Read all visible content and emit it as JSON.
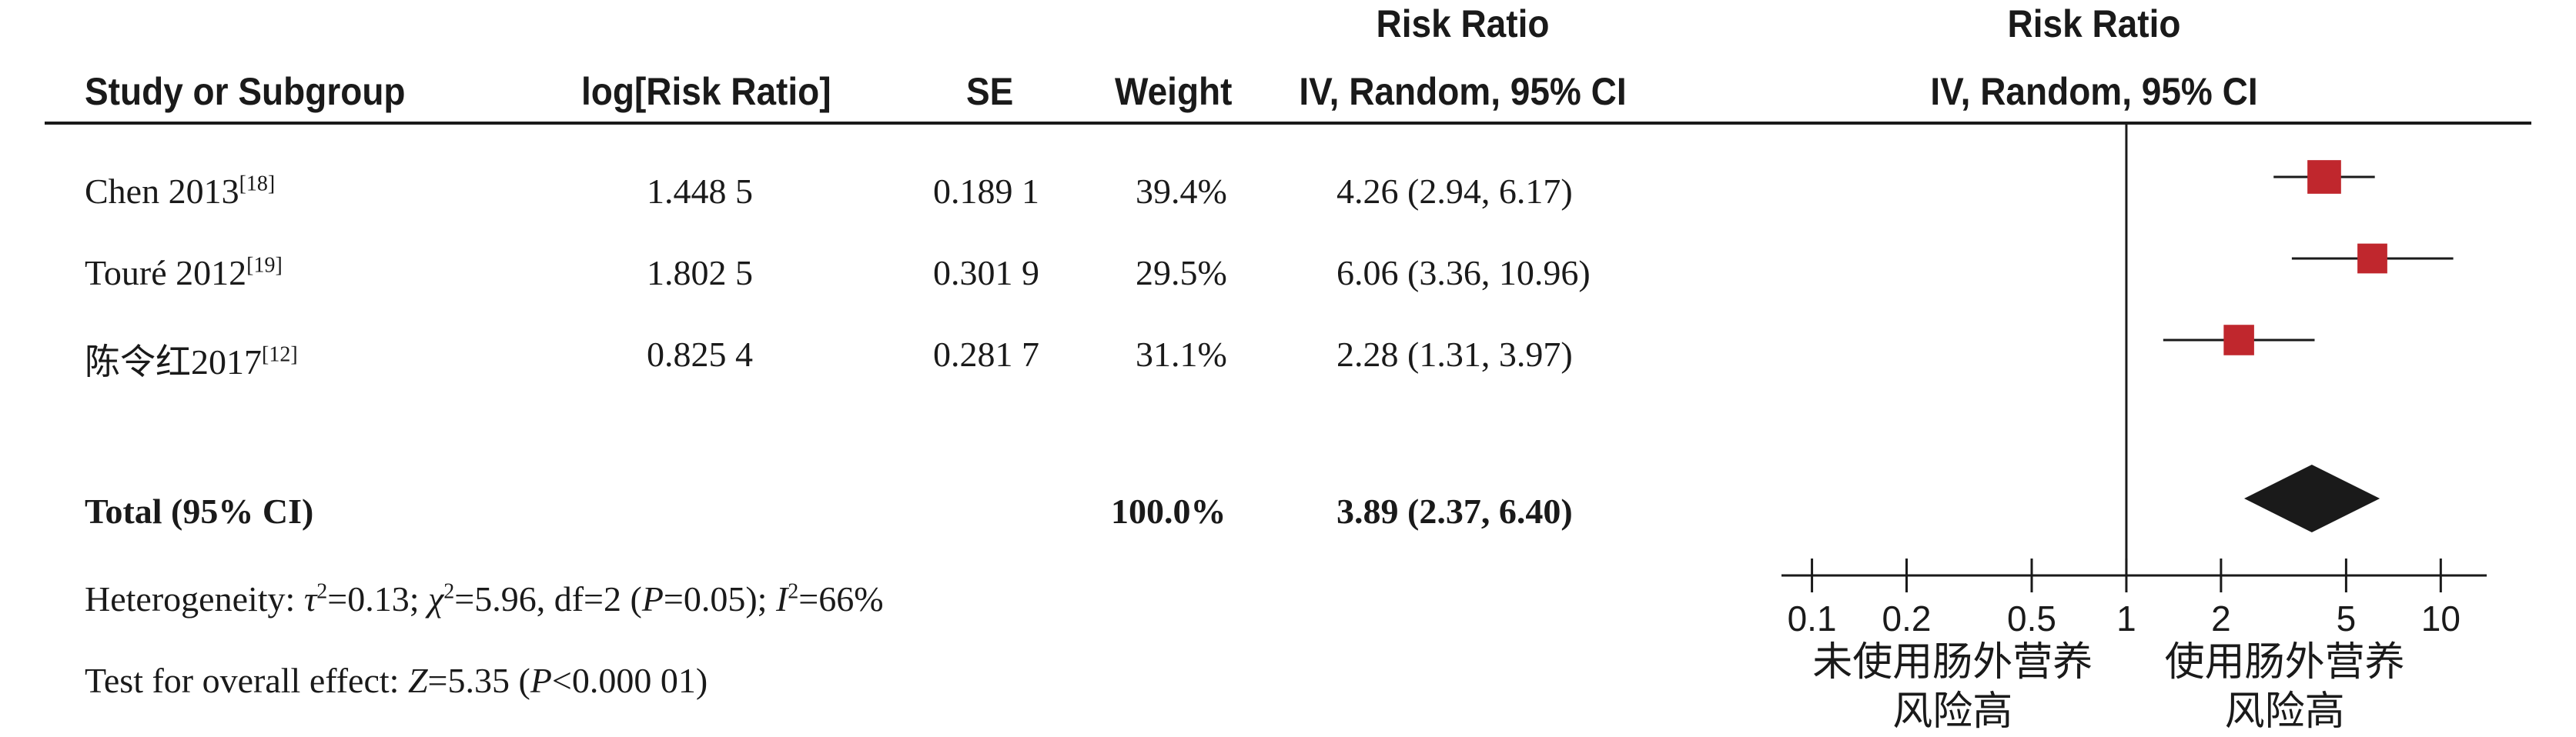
{
  "header": {
    "col_study": "Study or Subgroup",
    "col_logrr": "log[Risk Ratio]",
    "col_se": "SE",
    "col_weight": "Weight",
    "col_rr_title": "Risk Ratio",
    "col_rr_method": "IV, Random, 95% CI",
    "plot_title": "Risk Ratio",
    "plot_method": "IV, Random, 95% CI"
  },
  "studies": [
    {
      "name": "Chen 2013",
      "ref": "[18]",
      "logrr": "1.448 5",
      "se": "0.189 1",
      "weight": "39.4%",
      "ci_text": "4.26 (2.94, 6.17)"
    },
    {
      "name": "Touré 2012",
      "ref": "[19]",
      "logrr": "1.802 5",
      "se": "0.301 9",
      "weight": "29.5%",
      "ci_text": "6.06 (3.36, 10.96)"
    },
    {
      "name": "陈令红2017",
      "ref": "[12]",
      "logrr": "0.825 4",
      "se": "0.281 7",
      "weight": "31.1%",
      "ci_text": "2.28 (1.31, 3.97)"
    }
  ],
  "total": {
    "label": "Total (95% CI)",
    "weight": "100.0%",
    "ci_text": "3.89 (2.37, 6.40)"
  },
  "heterogeneity": {
    "prefix": "Heterogeneity: ",
    "tau_sym": "τ",
    "tau_val": "=0.13; ",
    "chi_sym": "χ",
    "chi_val": "=5.96, df=2 (",
    "p_sym": "P",
    "p_val": "=0.05); ",
    "i_sym": "I",
    "i_val": "=66%",
    "sup": "2"
  },
  "overall": {
    "prefix": "Test for overall effect: ",
    "z_sym": "Z",
    "z_val": "=5.35 (",
    "p_sym": "P",
    "p_val": "<0.000 01)"
  },
  "chart_data": {
    "type": "forest",
    "title": "Risk Ratio",
    "subtitle": "IV, Random, 95% CI",
    "x_scale": "log",
    "xlim": [
      0.08,
      14
    ],
    "ticks": [
      0.1,
      0.2,
      0.5,
      1,
      2,
      5,
      10
    ],
    "tick_labels": [
      "0.1",
      "0.2",
      "0.5",
      "1",
      "2",
      "5",
      "10"
    ],
    "null_line": 1,
    "favours_left": [
      "未使用肠外营养",
      "风险高"
    ],
    "favours_right": [
      "使用肠外营养",
      "风险高"
    ],
    "studies": [
      {
        "estimate": 4.26,
        "lower": 2.94,
        "upper": 6.17,
        "weight": 39.4
      },
      {
        "estimate": 6.06,
        "lower": 3.36,
        "upper": 10.96,
        "weight": 29.5
      },
      {
        "estimate": 2.28,
        "lower": 1.31,
        "upper": 3.97,
        "weight": 31.1
      }
    ],
    "pooled": {
      "estimate": 3.89,
      "lower": 2.37,
      "upper": 6.4
    },
    "marker_color": "#c0272d",
    "diamond_color": "#1a1a1a"
  }
}
